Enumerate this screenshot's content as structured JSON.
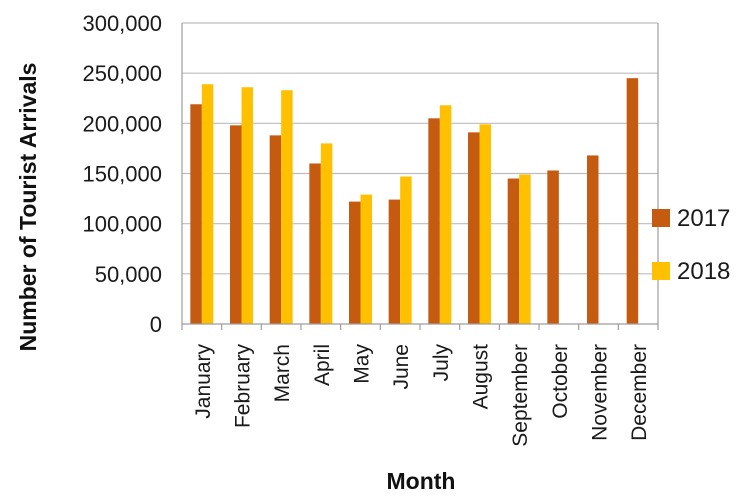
{
  "chart_data": {
    "type": "bar",
    "xlabel": "Month",
    "ylabel": "Number of Tourist Arrivals",
    "ylim": [
      0,
      300000
    ],
    "yticks": [
      "0",
      "50,000",
      "100,000",
      "150,000",
      "200,000",
      "250,000",
      "300,000"
    ],
    "grid": true,
    "legend_position": "right",
    "categories": [
      "January",
      "February",
      "March",
      "April",
      "May",
      "June",
      "July",
      "August",
      "September",
      "October",
      "November",
      "December"
    ],
    "series": [
      {
        "name": "2017",
        "color": "#C55A11",
        "values": [
          219000,
          198000,
          188000,
          160000,
          122000,
          124000,
          205000,
          191000,
          145000,
          153000,
          168000,
          245000
        ]
      },
      {
        "name": "2018",
        "color": "#FFC000",
        "values": [
          239000,
          236000,
          233000,
          180000,
          129000,
          147000,
          218000,
          199000,
          149000,
          null,
          null,
          null
        ]
      }
    ]
  }
}
